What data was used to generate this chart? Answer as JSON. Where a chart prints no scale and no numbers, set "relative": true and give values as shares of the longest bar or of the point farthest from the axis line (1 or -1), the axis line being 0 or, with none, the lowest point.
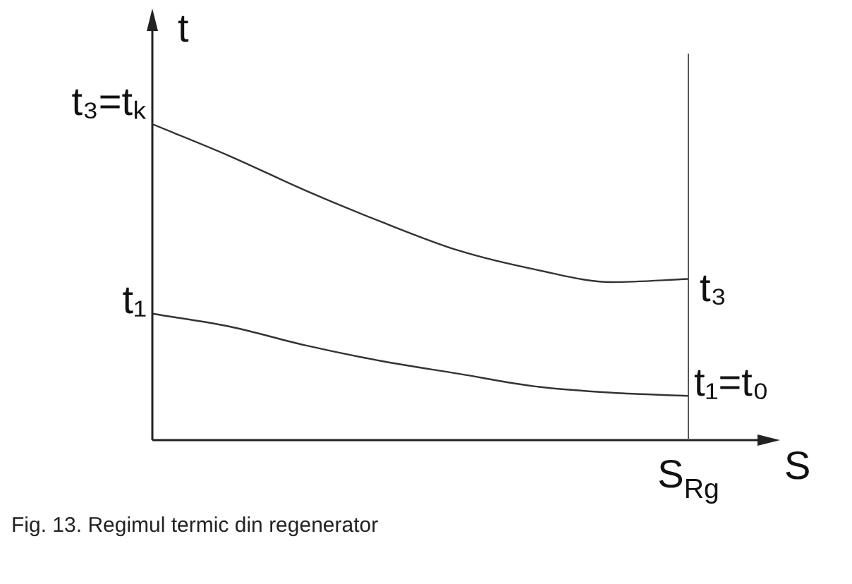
{
  "chart_data": {
    "type": "line",
    "relative": true,
    "marker": "none",
    "xlabel": "S",
    "ylabel": "t",
    "categories": [
      null,
      null,
      null,
      null,
      null,
      null,
      null,
      null
    ],
    "series": [
      {
        "color": "#333333",
        "values": [
          1,
          0.9,
          0.79,
          0.69,
          0.6,
          0.54,
          0.5,
          0.51
        ]
      },
      {
        "color": "#333333",
        "values": [
          0.4,
          0.36,
          0.3,
          0.25,
          0.21,
          0.17,
          0.15,
          0.14
        ]
      }
    ],
    "ref_lines": [
      {
        "axis": "x",
        "label": "S$_{Rg}$",
        "color": "#555555"
      }
    ],
    "annotations": [
      "t₃=tₖ",
      "t₁",
      "t₃",
      "t₁=t₀",
      "Fig. 13. Regimul termic din regenerator"
    ]
  }
}
